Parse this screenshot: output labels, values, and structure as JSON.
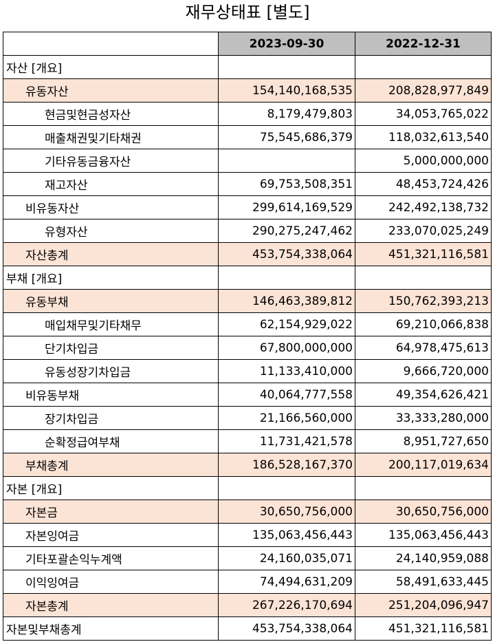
{
  "title": "재무상태표 [별도]",
  "columns": [
    "2023-09-30",
    "2022-12-31"
  ],
  "rows": [
    {
      "label": "자산 [개요]",
      "level": 0,
      "highlight": false,
      "v1": "",
      "v2": ""
    },
    {
      "label": "유동자산",
      "level": 1,
      "highlight": true,
      "v1": "154,140,168,535",
      "v2": "208,828,977,849"
    },
    {
      "label": "현금및현금성자산",
      "level": 2,
      "highlight": false,
      "v1": "8,179,479,803",
      "v2": "34,053,765,022"
    },
    {
      "label": "매출채권및기타채권",
      "level": 2,
      "highlight": false,
      "v1": "75,545,686,379",
      "v2": "118,032,613,540"
    },
    {
      "label": "기타유동금융자산",
      "level": 2,
      "highlight": false,
      "v1": "",
      "v2": "5,000,000,000"
    },
    {
      "label": "재고자산",
      "level": 2,
      "highlight": false,
      "v1": "69,753,508,351",
      "v2": "48,453,724,426"
    },
    {
      "label": "비유동자산",
      "level": 1,
      "highlight": false,
      "v1": "299,614,169,529",
      "v2": "242,492,138,732"
    },
    {
      "label": "유형자산",
      "level": 2,
      "highlight": false,
      "v1": "290,275,247,462",
      "v2": "233,070,025,249"
    },
    {
      "label": "자산총계",
      "level": 1,
      "highlight": true,
      "v1": "453,754,338,064",
      "v2": "451,321,116,581"
    },
    {
      "label": "부채 [개요]",
      "level": 0,
      "highlight": false,
      "v1": "",
      "v2": ""
    },
    {
      "label": "유동부채",
      "level": 1,
      "highlight": true,
      "v1": "146,463,389,812",
      "v2": "150,762,393,213"
    },
    {
      "label": "매입채무및기타채무",
      "level": 2,
      "highlight": false,
      "v1": "62,154,929,022",
      "v2": "69,210,066,838"
    },
    {
      "label": "단기차입금",
      "level": 2,
      "highlight": false,
      "v1": "67,800,000,000",
      "v2": "64,978,475,613"
    },
    {
      "label": "유동성장기차입금",
      "level": 2,
      "highlight": false,
      "v1": "11,133,410,000",
      "v2": "9,666,720,000"
    },
    {
      "label": "비유동부채",
      "level": 1,
      "highlight": false,
      "v1": "40,064,777,558",
      "v2": "49,354,626,421"
    },
    {
      "label": "장기차입금",
      "level": 2,
      "highlight": false,
      "v1": "21,166,560,000",
      "v2": "33,333,280,000"
    },
    {
      "label": "순확정급여부채",
      "level": 2,
      "highlight": false,
      "v1": "11,731,421,578",
      "v2": "8,951,727,650"
    },
    {
      "label": "부채총계",
      "level": 1,
      "highlight": true,
      "v1": "186,528,167,370",
      "v2": "200,117,019,634"
    },
    {
      "label": "자본 [개요]",
      "level": 0,
      "highlight": false,
      "v1": "",
      "v2": ""
    },
    {
      "label": "자본금",
      "level": 1,
      "highlight": true,
      "v1": "30,650,756,000",
      "v2": "30,650,756,000"
    },
    {
      "label": "자본잉여금",
      "level": 1,
      "highlight": false,
      "v1": "135,063,456,443",
      "v2": "135,063,456,443"
    },
    {
      "label": "기타포괄손익누계액",
      "level": 1,
      "highlight": false,
      "v1": "24,160,035,071",
      "v2": "24,140,959,088"
    },
    {
      "label": "이익잉여금",
      "level": 1,
      "highlight": false,
      "v1": "74,494,631,209",
      "v2": "58,491,633,445"
    },
    {
      "label": "자본총계",
      "level": 1,
      "highlight": true,
      "v1": "267,226,170,694",
      "v2": "251,204,096,947"
    },
    {
      "label": "자본및부채총계",
      "level": 0,
      "highlight": false,
      "v1": "453,754,338,064",
      "v2": "451,321,116,581"
    }
  ]
}
